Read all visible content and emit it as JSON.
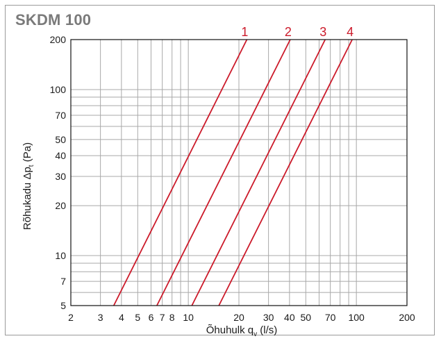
{
  "chart_title": "SKDM 100",
  "colors": {
    "curve": "#cc1a2a",
    "grid": "#a8a8a8",
    "axis": "#111111",
    "title": "#7a7a7a"
  },
  "chart_data": {
    "type": "line",
    "title": "SKDM 100",
    "xlabel": {
      "main": "Õhuhulk q",
      "sub": "v",
      "unit": " (l/s)"
    },
    "ylabel": {
      "main": "Rõhukadu Δp",
      "sub": "t",
      "unit": " (Pa)"
    },
    "x_scale": "log",
    "y_scale": "log",
    "xlim": [
      2,
      200
    ],
    "ylim": [
      5,
      200
    ],
    "x_ticks": [
      2,
      3,
      4,
      5,
      6,
      7,
      8,
      10,
      20,
      30,
      40,
      50,
      70,
      100,
      200
    ],
    "x_tick_labels": [
      "2",
      "3",
      "4",
      "5",
      "6",
      "7",
      "8",
      "10",
      "20",
      "30",
      "40",
      "50",
      "70",
      "100",
      "200"
    ],
    "y_ticks": [
      5,
      7,
      10,
      20,
      30,
      40,
      50,
      70,
      100,
      200
    ],
    "y_tick_labels": [
      "5",
      "7",
      "10",
      "20",
      "30",
      "40",
      "50",
      "70",
      "100",
      "200"
    ],
    "x_grid": [
      2,
      3,
      4,
      5,
      6,
      7,
      8,
      9,
      10,
      20,
      30,
      40,
      50,
      60,
      70,
      80,
      90,
      100,
      200
    ],
    "y_grid": [
      5,
      6,
      7,
      8,
      9,
      10,
      20,
      30,
      40,
      50,
      60,
      70,
      80,
      90,
      100,
      200
    ],
    "grid": true,
    "series": [
      {
        "name": "1",
        "x": [
          3.6,
          22.3
        ],
        "y": [
          5,
          200
        ]
      },
      {
        "name": "2",
        "x": [
          6.5,
          40.4
        ],
        "y": [
          5,
          200
        ]
      },
      {
        "name": "3",
        "x": [
          10.5,
          65.2
        ],
        "y": [
          5,
          200
        ]
      },
      {
        "name": "4",
        "x": [
          15.2,
          94.4
        ],
        "y": [
          5,
          200
        ]
      }
    ]
  }
}
